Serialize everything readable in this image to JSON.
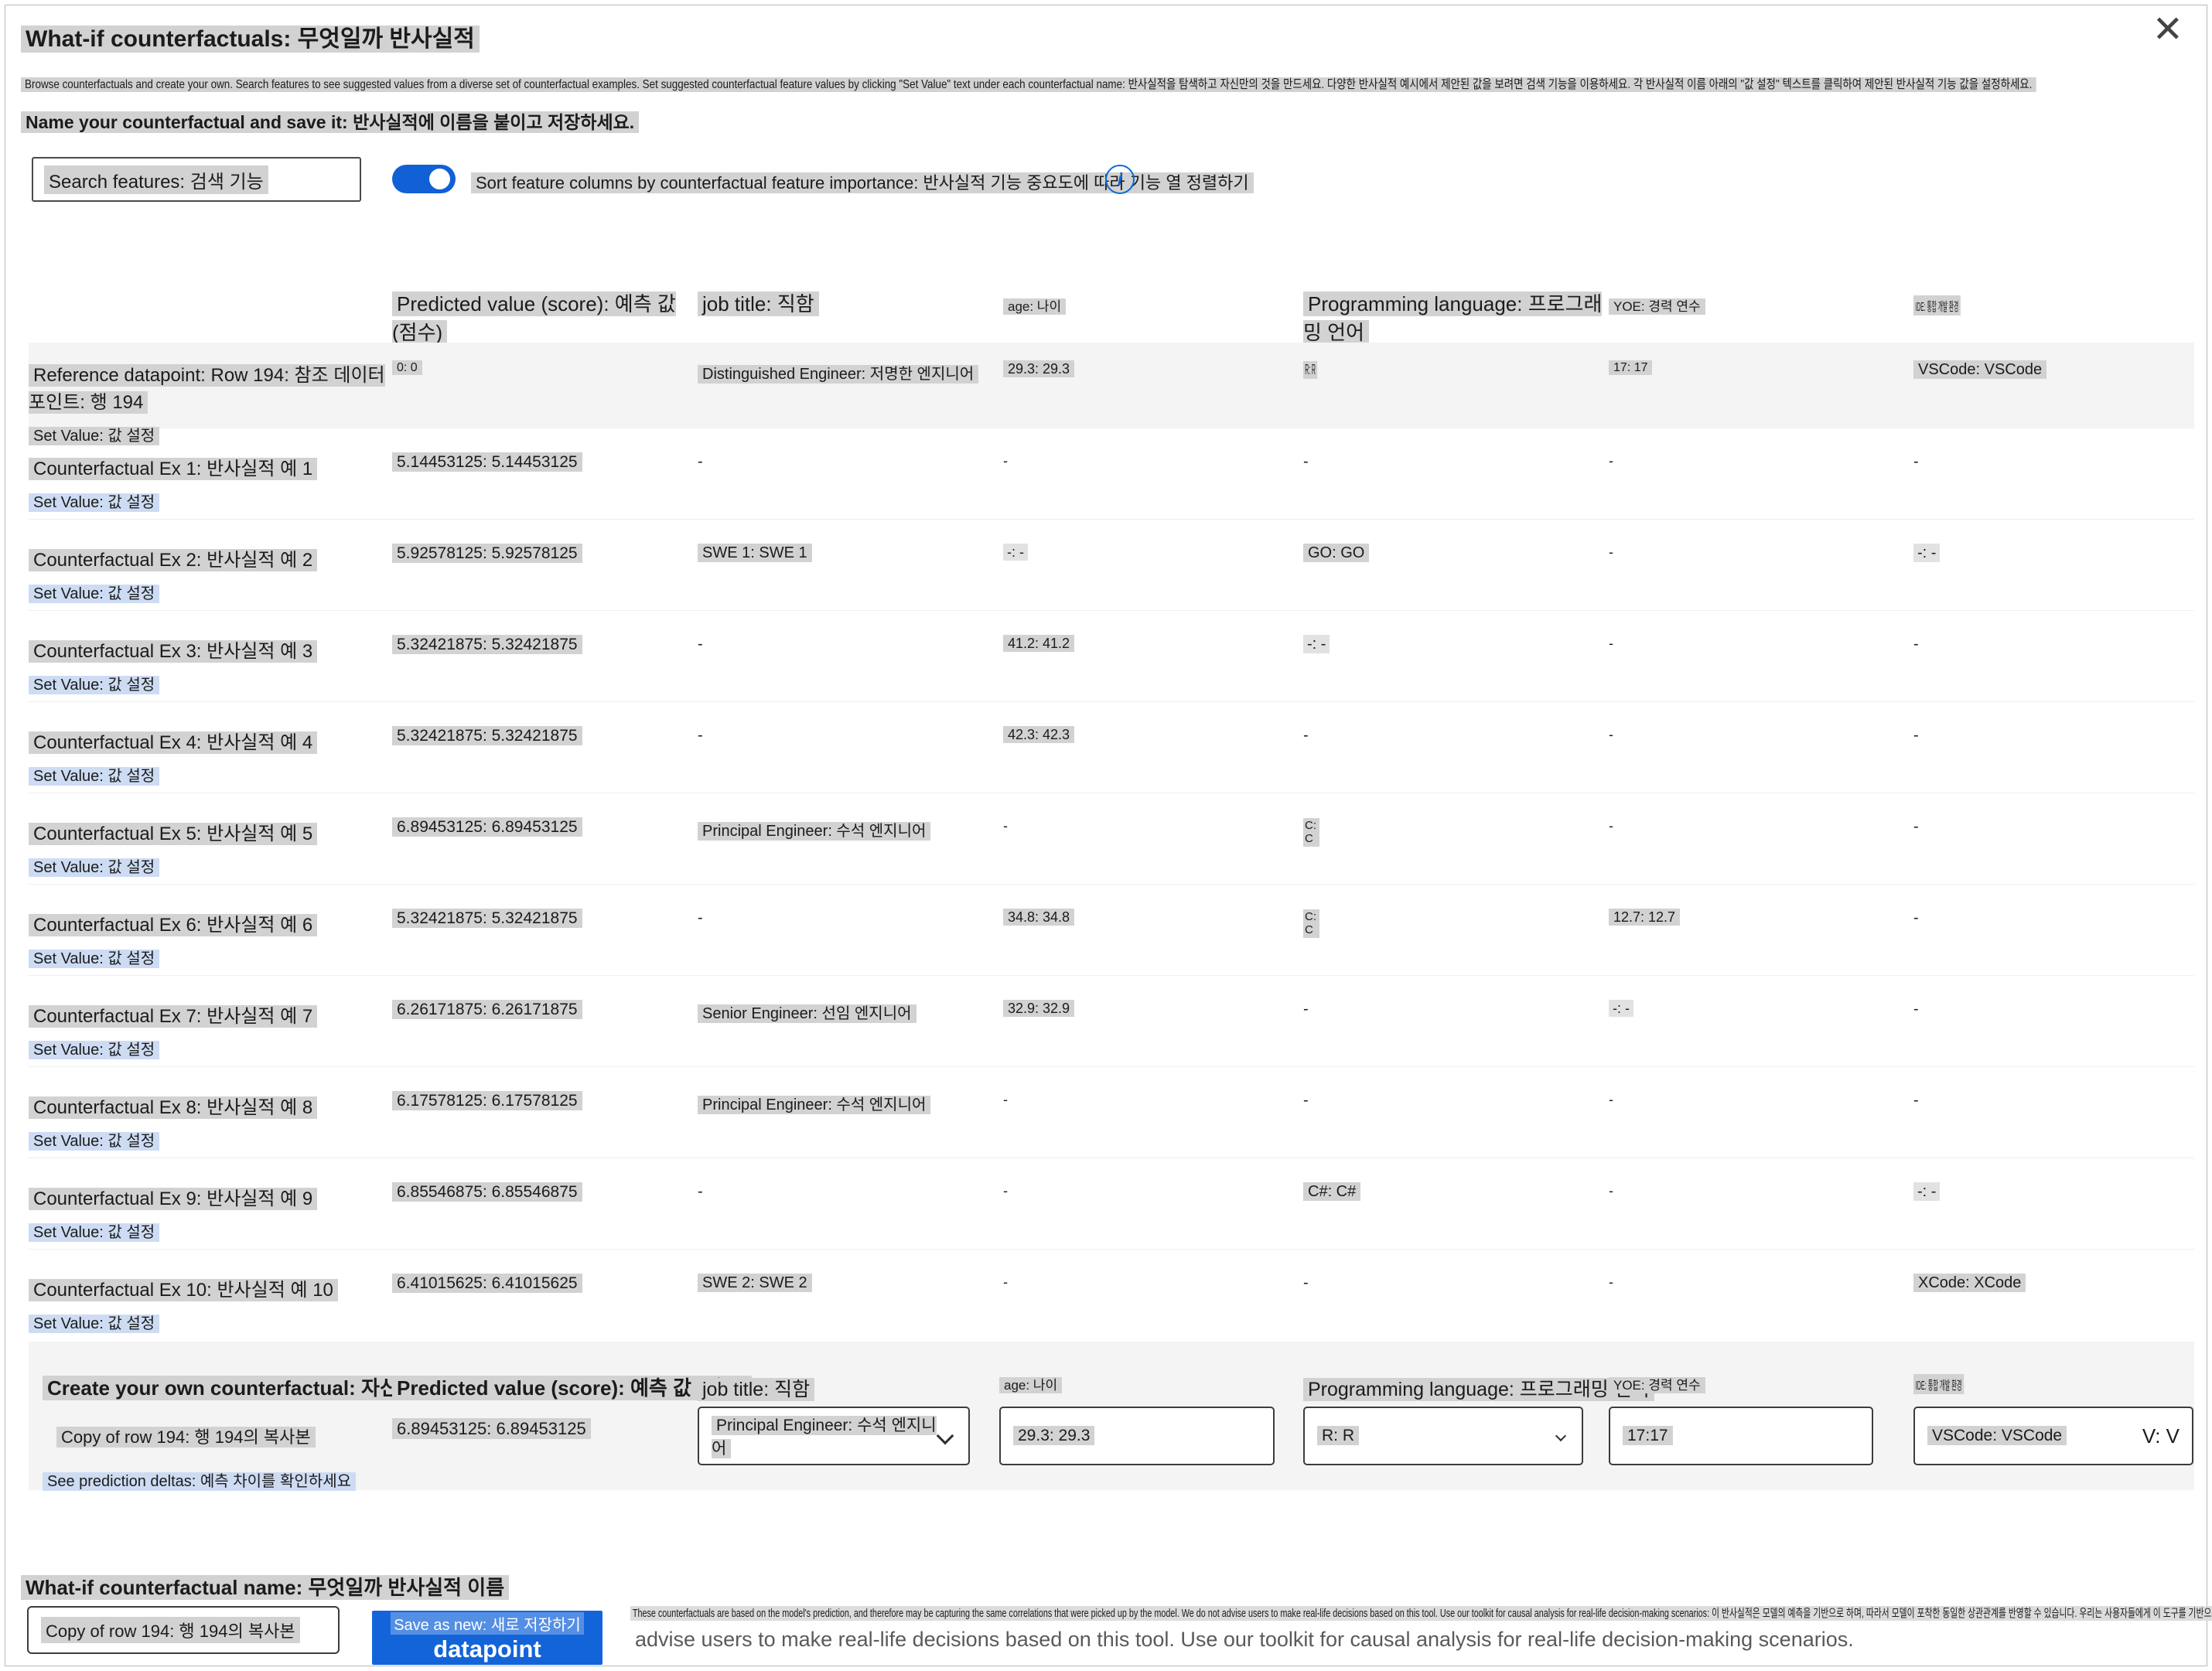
{
  "dialog": {
    "title": "What-if counterfactuals: 무엇일까 반사실적",
    "close_icon": "✕",
    "description": "Browse counterfactuals and create your own. Search features to see suggested values from a diverse set of counterfactual examples. Set suggested counterfactual feature values by clicking \"Set Value\" text under each counterfactual name: 반사실적을 탐색하고 자신만의 것을 만드세요. 다양한 반사실적 예시에서 제안된 값을 보려면 검색 기능을 이용하세요. 각 반사실적 이름 아래의 \"값 설정\" 텍스트를 클릭하여 제안된 반사실적 기능 값을 설정하세요.",
    "name_save_line": "Name your counterfactual and save it: 반사실적에 이름을 붙이고 저장하세요."
  },
  "controls": {
    "search_placeholder": "Search features: 검색 기능",
    "sort_toggle_label": "Sort feature columns by counterfactual feature importance: 반사실적 기능 중요도에 따라 기능 열 정렬하기",
    "sort_toggle_on": true,
    "info_icon": "i"
  },
  "table": {
    "set_value_label": "Set Value: 값 설정",
    "columns": [
      {
        "label": "Predicted value (score): 예측 값 (점수)",
        "size": "big"
      },
      {
        "label": "job title: 직함",
        "size": "big"
      },
      {
        "label": "age: 나이",
        "size": "small"
      },
      {
        "label": "Programming language: 프로그래밍 언어",
        "size": "big"
      },
      {
        "label": "YOE: 경력 연수",
        "size": "small"
      },
      {
        "label": "IDE: 통합 개발 환경",
        "size": "tiny"
      }
    ],
    "rows": [
      {
        "name": "Reference datapoint: Row 194: 참조 데이터 포인트: 행 194",
        "reference": true,
        "values": [
          "0: 0",
          "Distinguished Engineer: 저명한 엔지니어",
          "29.3: 29.3",
          "R: R",
          "17: 17",
          "VSCode: VSCode"
        ]
      },
      {
        "name": "Counterfactual Ex 1: 반사실적 예 1",
        "values": [
          "5.14453125: 5.14453125",
          "-",
          "-",
          "-",
          "-",
          "-"
        ]
      },
      {
        "name": "Counterfactual Ex 2: 반사실적 예 2",
        "values": [
          "5.92578125: 5.92578125",
          "SWE 1: SWE 1",
          "-: -",
          "GO: GO",
          "-",
          "-: -"
        ]
      },
      {
        "name": "Counterfactual Ex 3: 반사실적 예 3",
        "values": [
          "5.32421875: 5.32421875",
          "-",
          "41.2: 41.2",
          "-: -",
          "-",
          "-"
        ]
      },
      {
        "name": "Counterfactual Ex 4: 반사실적 예 4",
        "values": [
          "5.32421875: 5.32421875",
          "-",
          "42.3: 42.3",
          "-",
          "-",
          "-"
        ]
      },
      {
        "name": "Counterfactual Ex 5: 반사실적 예 5",
        "values": [
          "6.89453125: 6.89453125",
          "Principal Engineer: 수석 엔지니어",
          "-",
          "C: C",
          "-",
          "-"
        ]
      },
      {
        "name": "Counterfactual Ex 6: 반사실적 예 6",
        "values": [
          "5.32421875: 5.32421875",
          "-",
          "34.8: 34.8",
          "C: C",
          "12.7: 12.7",
          "-"
        ]
      },
      {
        "name": "Counterfactual Ex 7: 반사실적 예 7",
        "values": [
          "6.26171875: 6.26171875",
          "Senior Engineer: 선임 엔지니어",
          "32.9: 32.9",
          "-",
          "-: -",
          "-"
        ]
      },
      {
        "name": "Counterfactual Ex 8: 반사실적 예 8",
        "values": [
          "6.17578125: 6.17578125",
          "Principal Engineer: 수석 엔지니어",
          "-",
          "-",
          "-",
          "-"
        ]
      },
      {
        "name": "Counterfactual Ex 9: 반사실적 예 9",
        "values": [
          "6.85546875: 6.85546875",
          "-",
          "-",
          "C#: C#",
          "-",
          "-: -"
        ]
      },
      {
        "name": "Counterfactual Ex 10: 반사실적 예 10",
        "values": [
          "6.41015625: 6.41015625",
          "SWE 2: SWE 2",
          "-",
          "-",
          "-",
          "XCode: XCode"
        ]
      }
    ],
    "display_hints": {
      "squeeze_x": [
        [
          0,
          3
        ]
      ],
      "stack": [
        [
          5,
          3
        ],
        [
          6,
          3
        ]
      ]
    }
  },
  "create_section": {
    "title": "Create your own counterfactual: 자신만의 반사실적 만들기",
    "predicted_header": "Predicted value (score): 예측 값 (점수)",
    "row_label": "Copy of row 194: 행 194의 복사본",
    "predicted_value": "6.89453125: 6.89453125",
    "see_deltas": "See prediction deltas: 예측 차이를 확인하세요",
    "fields": [
      {
        "header": "job title: 직함",
        "size": "big",
        "value": "Principal Engineer: 수석 엔지니어",
        "type": "dropdown"
      },
      {
        "header": "age: 나이",
        "size": "small",
        "value": "29.3: 29.3",
        "type": "input"
      },
      {
        "header": "Programming language: 프로그래밍 언어",
        "size": "big",
        "value": "R: R",
        "type": "dropdown-small"
      },
      {
        "header": "YOE: 경력 연수",
        "size": "small",
        "value": "17:17",
        "type": "input"
      },
      {
        "header": "IDE: 통합 개발 환경",
        "size": "tiny",
        "value": "VSCode: VSCode",
        "suffix": "V: V",
        "type": "dropdown-text"
      }
    ]
  },
  "footer": {
    "name_label": "What-if counterfactual name: 무엇일까 반사실적 이름",
    "name_value": "Copy of row 194: 행 194의 복사본",
    "save_button_line1": "Save as new: 새로 저장하기",
    "save_button_line2": "datapoint",
    "disclaimer_small": "These counterfactuals are based on the model's prediction, and therefore may be capturing the same correlations that were picked up by the model. We do not advise users to make real-life decisions based on this tool. Use our toolkit for causal analysis for real-life decision-making scenarios: 이 반사실적은 모델의 예측을 기반으로 하며, 따라서 모델이 포착한 동일한 상관관계를 반영할 수 있습니다. 우리는 사용자들에게 이 도구를 기반으로 현실 세계의 결정을 내리지 말 것을 권장합니다. 현실 세계의 의사 결정 시나리오에 대한 인과 분석을 위해 우리의 도구 키트를 사용하세요.",
    "disclaimer_large": "advise users to make real-life decisions based on this tool. Use our toolkit for causal analysis for real-life decision-making scenarios."
  },
  "colors": {
    "accent_blue": "#1464d9",
    "toggle_blue": "#1160d6",
    "highlight_gray": "#d2d2d2",
    "highlight_blue": "#cddcf3",
    "reference_row_bg": "#f4f4f4"
  }
}
